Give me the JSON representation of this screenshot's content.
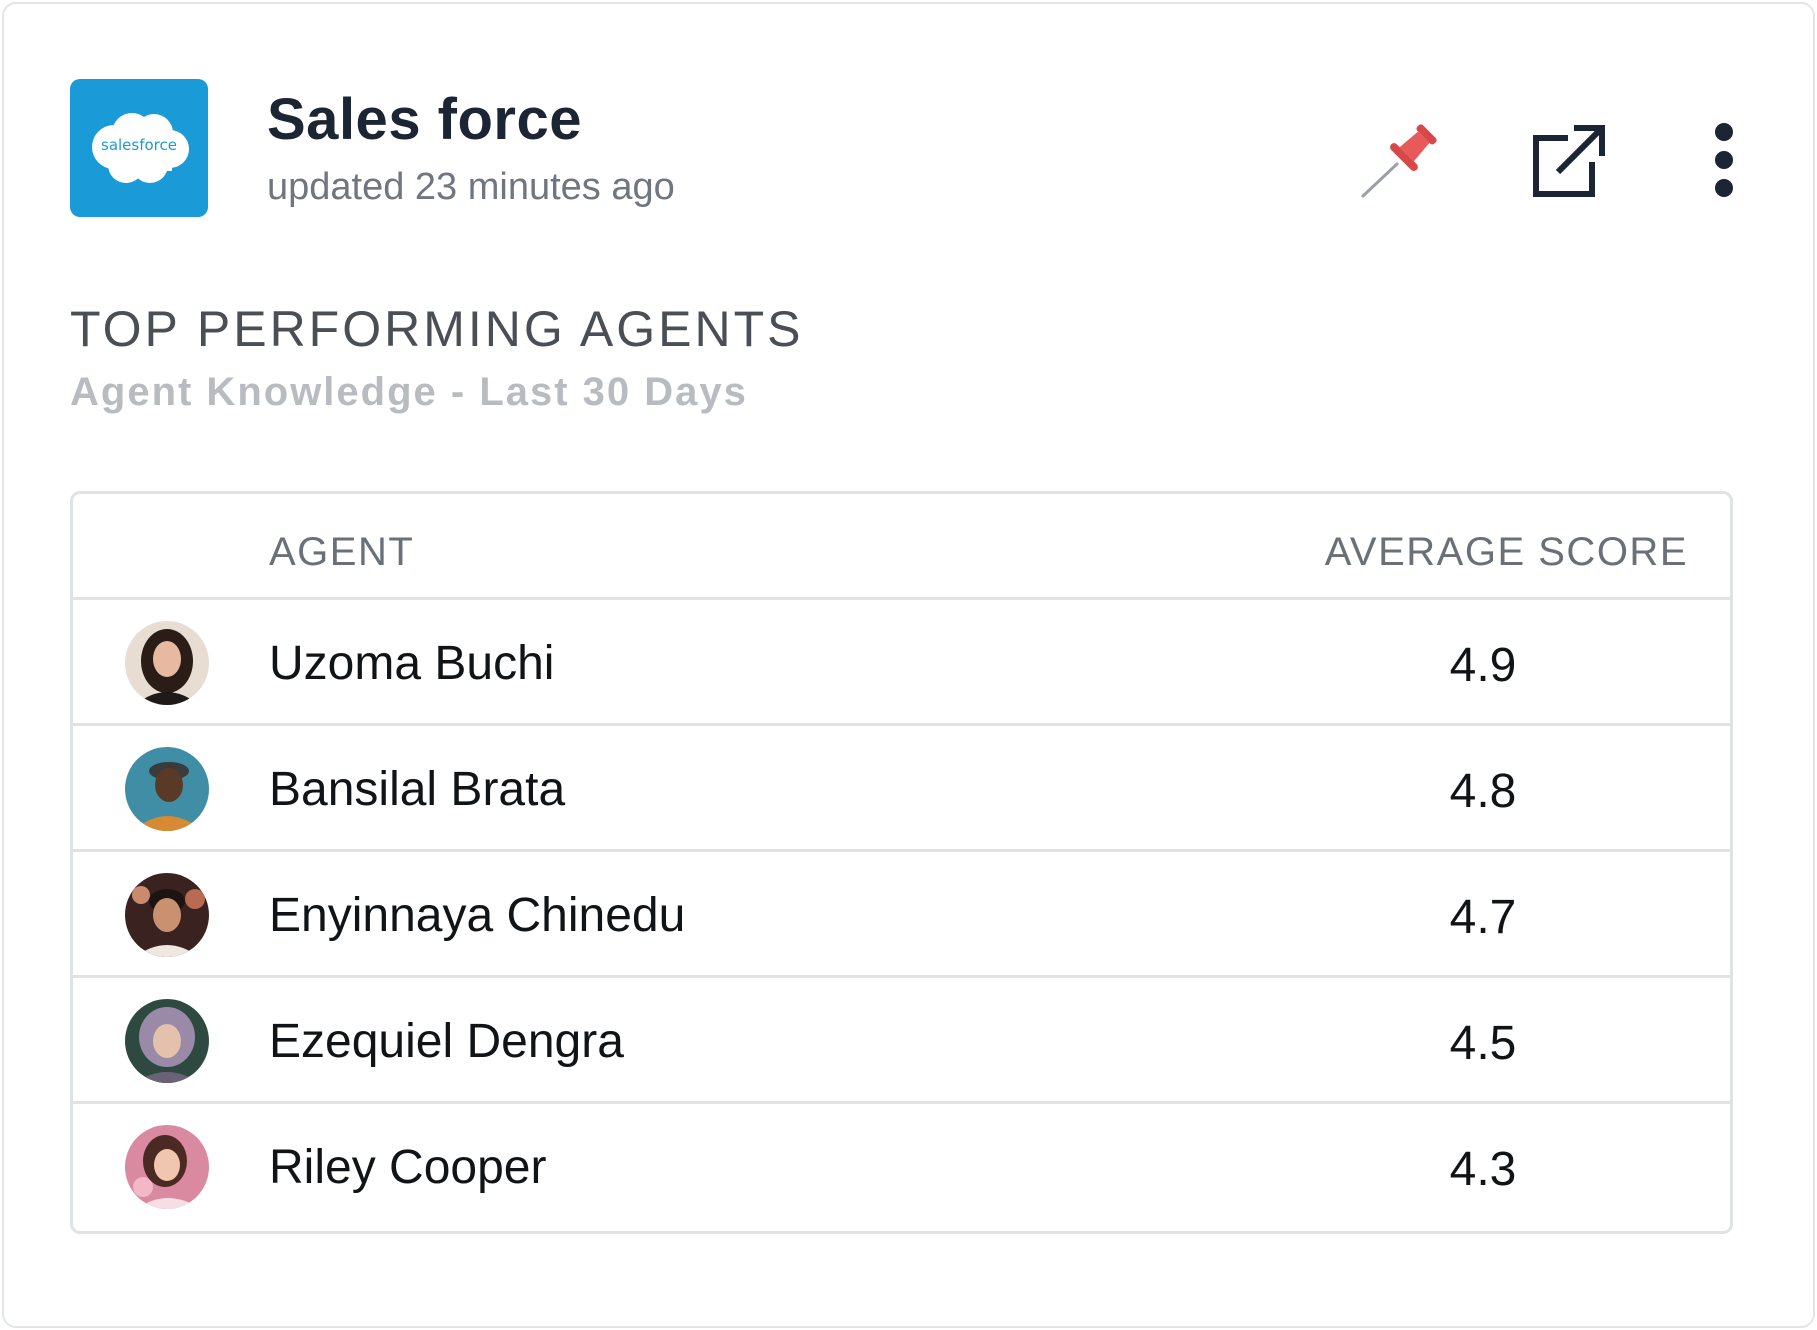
{
  "header": {
    "logo_text": "salesforce",
    "title": "Sales force",
    "subtitle": "updated 23 minutes ago",
    "icons": [
      "pin-icon",
      "external-link-icon",
      "more-vertical-icon"
    ]
  },
  "section": {
    "title": "TOP PERFORMING AGENTS",
    "subtitle": "Agent Knowledge - Last 30 Days"
  },
  "table": {
    "columns": [
      "AGENT",
      "AVERAGE SCORE"
    ],
    "rows": [
      {
        "name": "Uzoma Buchi",
        "score": "4.9"
      },
      {
        "name": "Bansilal Brata",
        "score": "4.8"
      },
      {
        "name": "Enyinnaya Chinedu",
        "score": "4.7"
      },
      {
        "name": "Ezequiel Dengra",
        "score": "4.5"
      },
      {
        "name": "Riley Cooper",
        "score": "4.3"
      }
    ]
  },
  "colors": {
    "brand_blue": "#1a9bd7",
    "pin_red": "#e85a5a",
    "title_dark": "#1c2533"
  }
}
